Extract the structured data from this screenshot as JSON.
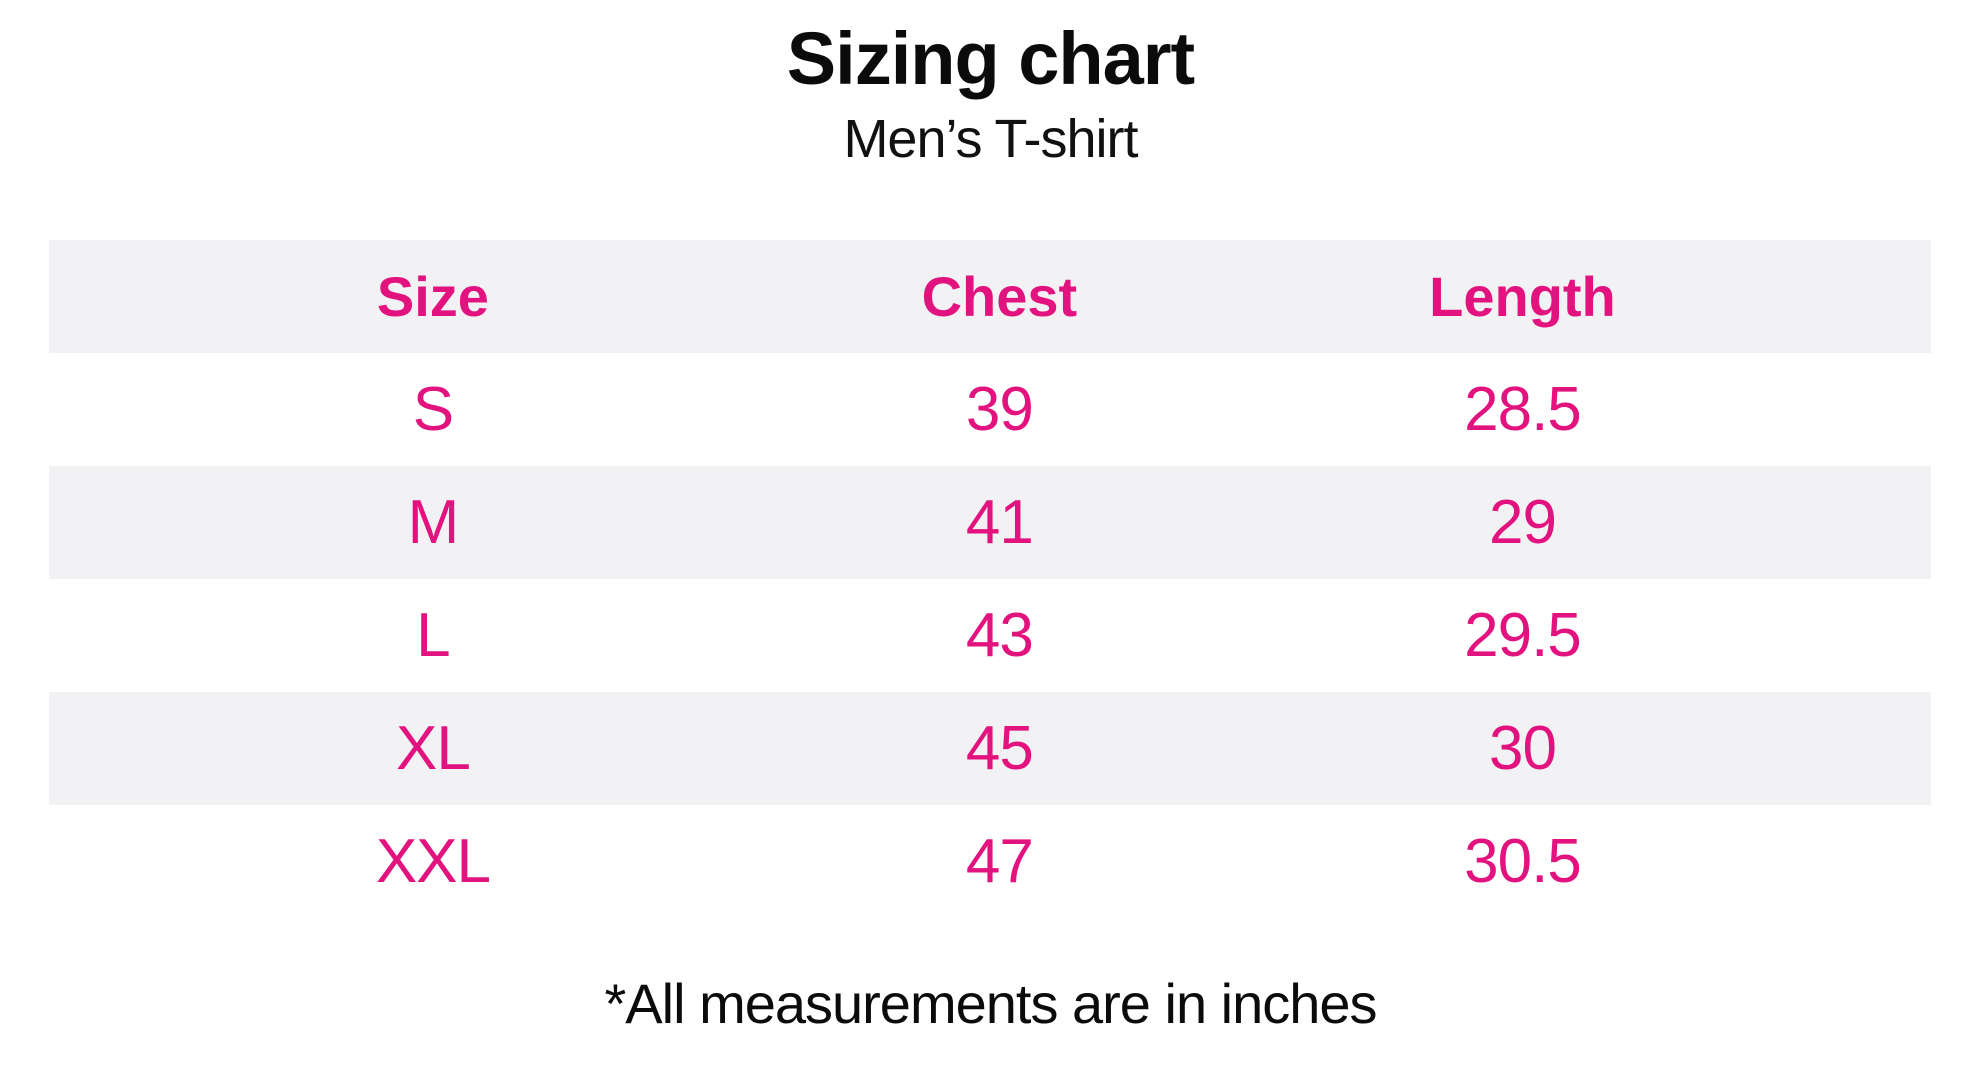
{
  "header": {
    "title": "Sizing chart",
    "subtitle": "Men’s T-shirt"
  },
  "chart_data": {
    "type": "table",
    "title": "Sizing chart",
    "subtitle": "Men’s T-shirt",
    "units": "inches",
    "columns": [
      "Size",
      "Chest",
      "Length"
    ],
    "rows": [
      {
        "size": "S",
        "chest": "39",
        "length": "28.5"
      },
      {
        "size": "M",
        "chest": "41",
        "length": "29"
      },
      {
        "size": "L",
        "chest": "43",
        "length": "29.5"
      },
      {
        "size": "XL",
        "chest": "45",
        "length": "30"
      },
      {
        "size": "XXL",
        "chest": "47",
        "length": "30.5"
      }
    ]
  },
  "footer": {
    "note": "*All measurements are in inches"
  },
  "colors": {
    "accent_pink": "#e2127e",
    "row_alt_gray": "#f2f2f4",
    "text_black": "#0b0b0b"
  }
}
